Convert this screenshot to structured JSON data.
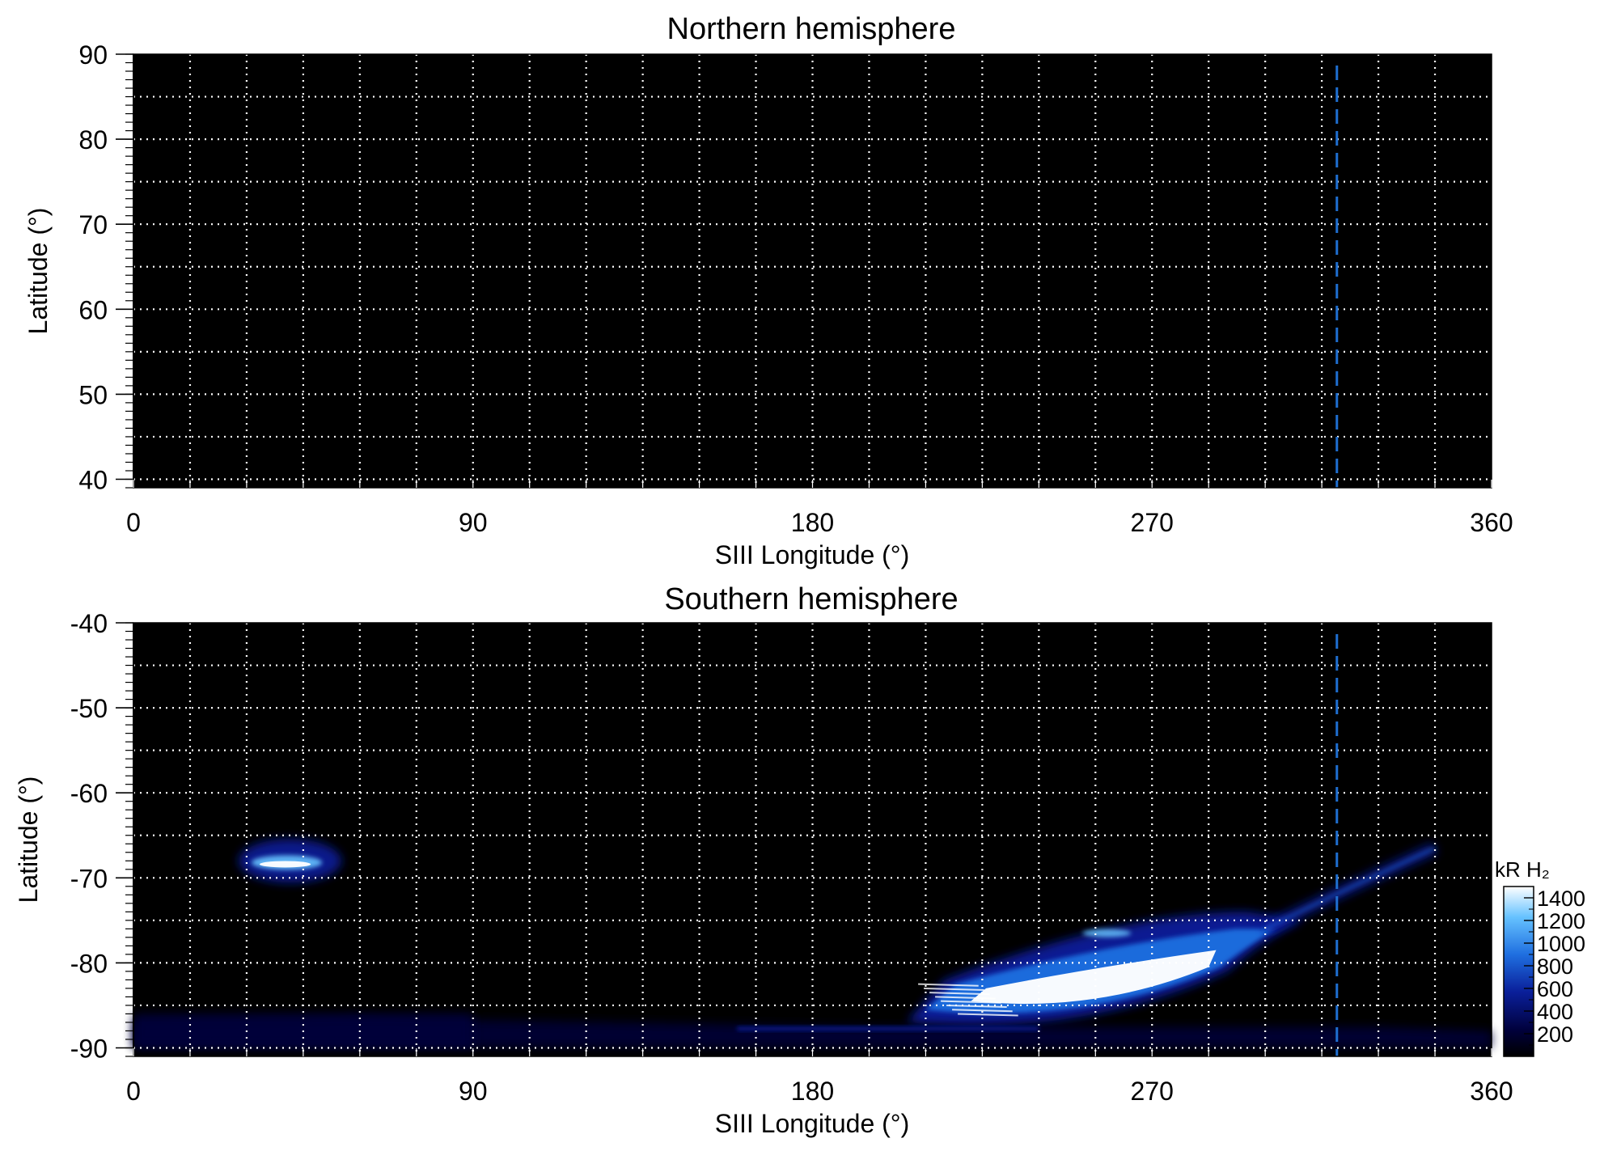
{
  "chart_data": [
    {
      "type": "heatmap",
      "title": "Northern hemisphere",
      "xlabel": "SIII Longitude (°)",
      "ylabel": "Latitude (°)",
      "xlim": [
        0,
        360
      ],
      "ylim": [
        39,
        90
      ],
      "x_ticks": [
        "0",
        "90",
        "180",
        "270",
        "360"
      ],
      "x_tick_values": [
        0,
        90,
        180,
        270,
        360
      ],
      "y_ticks": [
        "40",
        "50",
        "60",
        "70",
        "80",
        "90"
      ],
      "y_tick_values": [
        40,
        50,
        60,
        70,
        80,
        90
      ],
      "grid": true,
      "grid_style": "dotted white",
      "grid_x_step": 15,
      "grid_y_step": 5,
      "reference_longitude": 319,
      "reference_line_color": "#1f6fd1",
      "emission": []
    },
    {
      "type": "heatmap",
      "title": "Southern hemisphere",
      "xlabel": "SIII Longitude (°)",
      "ylabel": "Latitude (°)",
      "xlim": [
        0,
        360
      ],
      "ylim": [
        -91,
        -40
      ],
      "x_ticks": [
        "0",
        "90",
        "180",
        "270",
        "360"
      ],
      "x_tick_values": [
        0,
        90,
        180,
        270,
        360
      ],
      "y_ticks": [
        "-40",
        "-50",
        "-60",
        "-70",
        "-80",
        "-90"
      ],
      "y_tick_values": [
        -40,
        -50,
        -60,
        -70,
        -80,
        -90
      ],
      "grid": true,
      "grid_style": "dotted white",
      "grid_x_step": 15,
      "grid_y_step": 5,
      "reference_longitude": 319,
      "reference_line_color": "#1f6fd1",
      "emission": [
        {
          "feature": "spot",
          "lon": [
            30,
            53
          ],
          "lat": [
            -70,
            -66
          ],
          "peak": 1400
        },
        {
          "feature": "oval",
          "lon": [
            205,
            300
          ],
          "lat": [
            -87,
            -75
          ],
          "peak": 1400
        },
        {
          "feature": "arc",
          "lon": [
            300,
            345
          ],
          "lat": [
            -76,
            -66
          ],
          "peak": 500
        },
        {
          "feature": "polar band",
          "lon": [
            0,
            360
          ],
          "lat": [
            -90,
            -85
          ],
          "peak": 400
        }
      ],
      "colorbar": {
        "label": "kR H₂",
        "range": [
          0,
          1500
        ],
        "ticks": [
          "1400",
          "1200",
          "1000",
          "800",
          "600",
          "400",
          "200"
        ],
        "tick_values": [
          1400,
          1200,
          1000,
          800,
          600,
          400,
          200
        ],
        "colors": [
          "#000000",
          "#00003a",
          "#0a1f9a",
          "#1f6fe0",
          "#66c2ff",
          "#ffffff"
        ]
      }
    }
  ]
}
